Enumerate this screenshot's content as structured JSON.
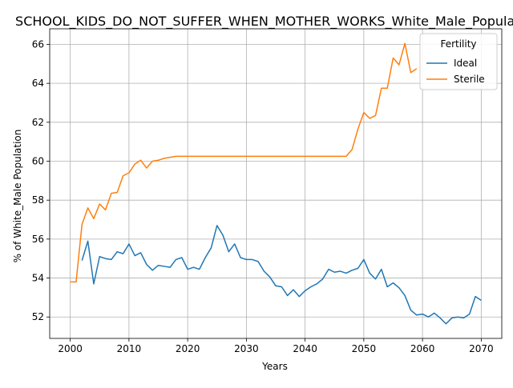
{
  "chart_data": {
    "type": "line",
    "title": "SCHOOL_KIDS_DO_NOT_SUFFER_WHEN_MOTHER_WORKS_White_Male_Population",
    "xlabel": "Years",
    "ylabel": "% of White_Male Population",
    "xlim": [
      1996.5,
      2073.5
    ],
    "ylim": [
      50.9,
      66.8
    ],
    "xticks": [
      2000,
      2010,
      2020,
      2030,
      2040,
      2050,
      2060,
      2070
    ],
    "yticks": [
      52,
      54,
      56,
      58,
      60,
      62,
      64,
      66
    ],
    "grid": true,
    "legend": {
      "title": "Fertility",
      "placement": "top-right"
    },
    "series": [
      {
        "name": "Ideal",
        "color": "#1f77b4",
        "x": [
          2002,
          2003,
          2004,
          2005,
          2006,
          2007,
          2008,
          2009,
          2010,
          2011,
          2012,
          2013,
          2014,
          2015,
          2016,
          2017,
          2018,
          2019,
          2020,
          2021,
          2022,
          2023,
          2024,
          2025,
          2026,
          2027,
          2028,
          2029,
          2030,
          2031,
          2032,
          2033,
          2034,
          2035,
          2036,
          2037,
          2038,
          2039,
          2040,
          2041,
          2042,
          2043,
          2044,
          2045,
          2046,
          2047,
          2048,
          2049,
          2050,
          2051,
          2052,
          2053,
          2054,
          2055,
          2056,
          2057,
          2058,
          2059,
          2060,
          2061,
          2062,
          2063,
          2064,
          2065,
          2066,
          2067,
          2068,
          2069,
          2070
        ],
        "y": [
          54.9,
          55.9,
          53.7,
          55.1,
          55.0,
          54.95,
          55.35,
          55.25,
          55.75,
          55.15,
          55.3,
          54.7,
          54.4,
          54.65,
          54.6,
          54.55,
          54.95,
          55.05,
          54.45,
          54.55,
          54.45,
          55.05,
          55.55,
          56.7,
          56.2,
          55.35,
          55.75,
          55.05,
          54.95,
          54.95,
          54.85,
          54.35,
          54.05,
          53.6,
          53.55,
          53.1,
          53.4,
          53.05,
          53.35,
          53.55,
          53.7,
          53.95,
          54.45,
          54.3,
          54.35,
          54.25,
          54.4,
          54.5,
          54.95,
          54.25,
          53.95,
          54.45,
          53.55,
          53.75,
          53.5,
          53.1,
          52.35,
          52.1,
          52.15,
          52.0,
          52.2,
          51.95,
          51.65,
          51.95,
          52.0,
          51.95,
          52.15,
          53.05,
          52.85
        ]
      },
      {
        "name": "Sterile",
        "color": "#ff7f0e",
        "x": [
          2000,
          2001,
          2002,
          2003,
          2004,
          2005,
          2006,
          2007,
          2008,
          2009,
          2010,
          2011,
          2012,
          2013,
          2014,
          2015,
          2016,
          2017,
          2018,
          2019,
          2020,
          2021,
          2022,
          2023,
          2024,
          2025,
          2026,
          2027,
          2028,
          2029,
          2030,
          2031,
          2032,
          2033,
          2034,
          2035,
          2036,
          2037,
          2038,
          2039,
          2040,
          2041,
          2042,
          2043,
          2044,
          2045,
          2046,
          2047,
          2048,
          2049,
          2050,
          2051,
          2052,
          2053,
          2054,
          2055,
          2056,
          2057,
          2058,
          2059
        ],
        "y": [
          53.8,
          53.8,
          56.75,
          57.6,
          57.05,
          57.8,
          57.5,
          58.35,
          58.4,
          59.25,
          59.4,
          59.85,
          60.05,
          59.65,
          60.0,
          60.05,
          60.15,
          60.2,
          60.25,
          60.25,
          60.25,
          60.25,
          60.25,
          60.25,
          60.25,
          60.25,
          60.25,
          60.25,
          60.25,
          60.25,
          60.25,
          60.25,
          60.25,
          60.25,
          60.25,
          60.25,
          60.25,
          60.25,
          60.25,
          60.25,
          60.25,
          60.25,
          60.25,
          60.25,
          60.25,
          60.25,
          60.25,
          60.25,
          60.6,
          61.65,
          62.5,
          62.2,
          62.35,
          63.75,
          63.75,
          65.3,
          64.95,
          66.05,
          64.55,
          64.75
        ]
      }
    ]
  }
}
